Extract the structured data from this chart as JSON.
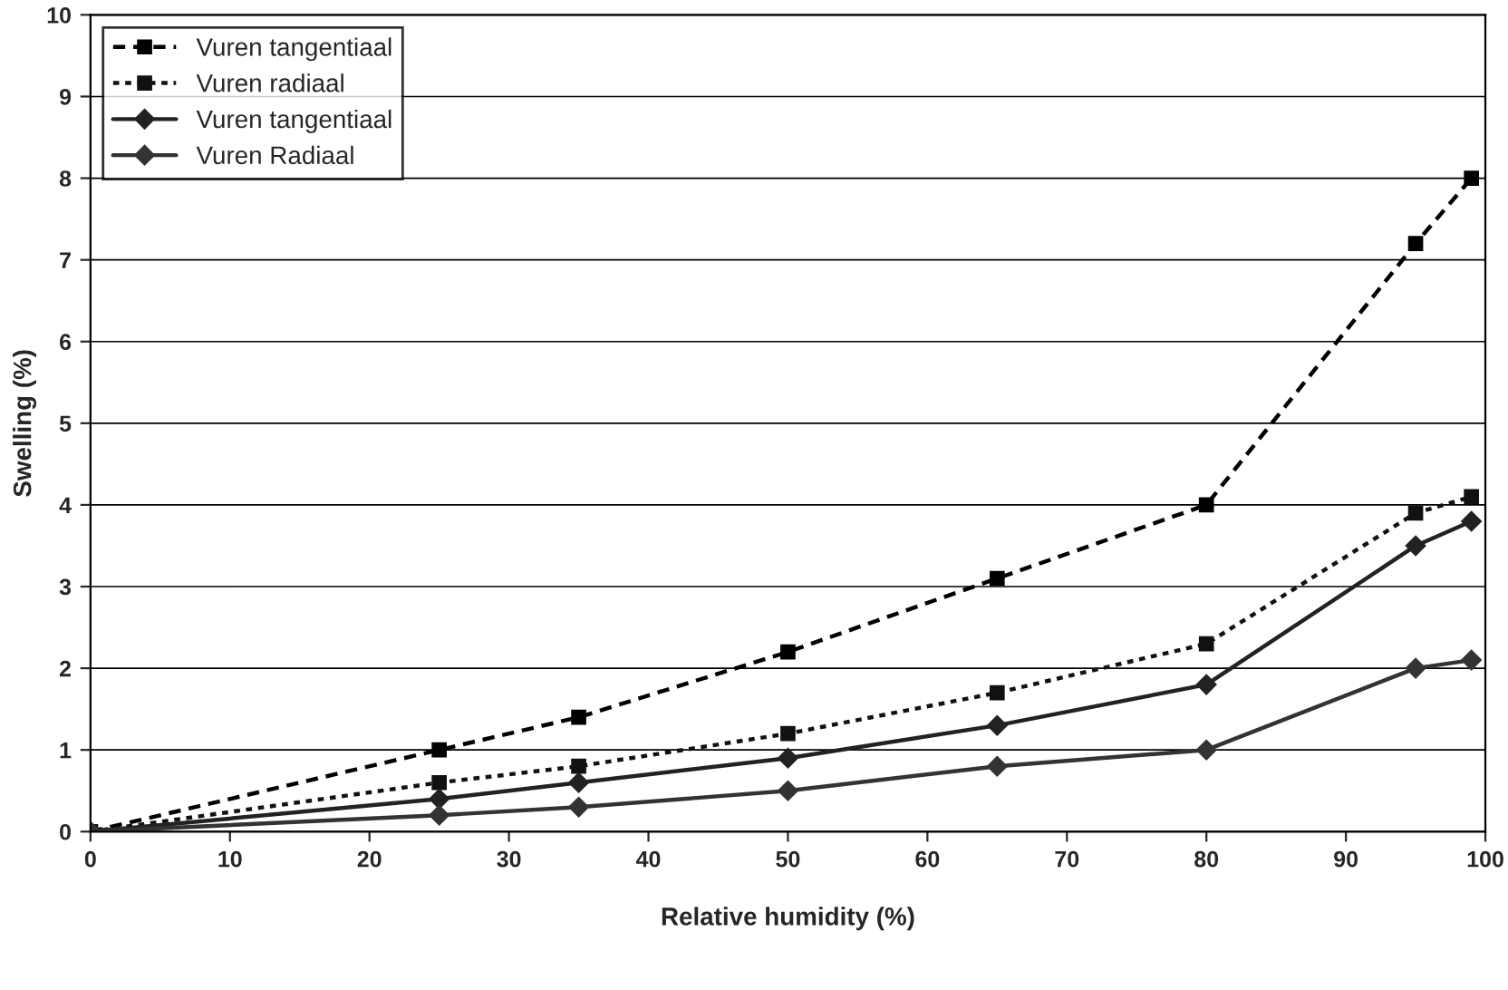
{
  "chart_data": {
    "type": "line",
    "xlabel": "Relative humidity (%)",
    "ylabel": "Swelling (%)",
    "xlim": [
      0,
      100
    ],
    "xticks": [
      0,
      10,
      20,
      30,
      40,
      50,
      60,
      70,
      80,
      90,
      100
    ],
    "ylim": [
      0,
      10
    ],
    "yticks": [
      0,
      1,
      2,
      3,
      4,
      5,
      6,
      7,
      8,
      9,
      10
    ],
    "grid": "y",
    "legend": "top left",
    "series": [
      {
        "name": "Vuren tangentiaal",
        "color": "#000000",
        "line_style": "dashed",
        "marker": "square",
        "x": [
          0,
          25,
          35,
          50,
          65,
          80,
          95,
          99
        ],
        "values": [
          0,
          1.0,
          1.4,
          2.2,
          3.1,
          4.0,
          7.2,
          8.0
        ]
      },
      {
        "name": "Vuren radiaal",
        "color": "#111111",
        "line_style": "dotted",
        "marker": "square",
        "x": [
          0,
          25,
          35,
          50,
          65,
          80,
          95,
          99
        ],
        "values": [
          0,
          0.6,
          0.8,
          1.2,
          1.7,
          2.3,
          3.9,
          4.1
        ]
      },
      {
        "name": "Vuren tangentiaal",
        "color": "#222222",
        "line_style": "solid",
        "marker": "diamond",
        "x": [
          0,
          25,
          35,
          50,
          65,
          80,
          95,
          99
        ],
        "values": [
          0,
          0.4,
          0.6,
          0.9,
          1.3,
          1.8,
          3.5,
          3.8
        ]
      },
      {
        "name": "Vuren Radiaal",
        "color": "#333333",
        "line_style": "solid",
        "marker": "diamond",
        "x": [
          0,
          25,
          35,
          50,
          65,
          80,
          95,
          99
        ],
        "values": [
          0,
          0.2,
          0.3,
          0.5,
          0.8,
          1.0,
          2.0,
          2.1
        ]
      }
    ]
  }
}
